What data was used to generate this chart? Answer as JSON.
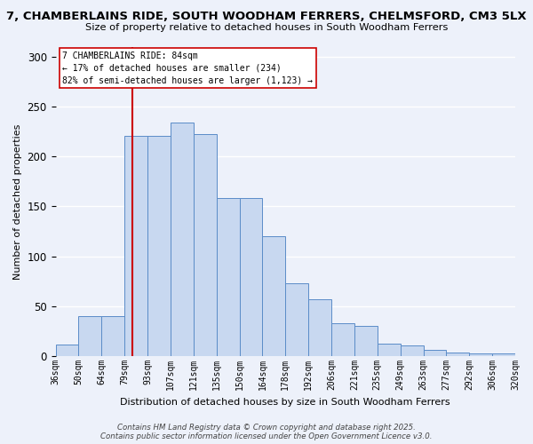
{
  "title_line1": "7, CHAMBERLAINS RIDE, SOUTH WOODHAM FERRERS, CHELMSFORD, CM3 5LX",
  "title_line2": "Size of property relative to detached houses in South Woodham Ferrers",
  "xlabel": "Distribution of detached houses by size in South Woodham Ferrers",
  "ylabel": "Number of detached properties",
  "bin_labels": [
    "36sqm",
    "50sqm",
    "64sqm",
    "79sqm",
    "93sqm",
    "107sqm",
    "121sqm",
    "135sqm",
    "150sqm",
    "164sqm",
    "178sqm",
    "192sqm",
    "206sqm",
    "221sqm",
    "235sqm",
    "249sqm",
    "263sqm",
    "277sqm",
    "292sqm",
    "306sqm",
    "320sqm"
  ],
  "bar_heights": [
    12,
    40,
    40,
    221,
    221,
    234,
    222,
    158,
    158,
    120,
    73,
    57,
    33,
    30,
    13,
    11,
    6,
    4,
    3,
    3
  ],
  "bar_color": "#c8d8f0",
  "bar_edge_color": "#5b8cc8",
  "vline_color": "#cc0000",
  "annotation_line1": "7 CHAMBERLAINS RIDE: 84sqm",
  "annotation_line2": "← 17% of detached houses are smaller (234)",
  "annotation_line3": "82% of semi-detached houses are larger (1,123) →",
  "annotation_box_facecolor": "#ffffff",
  "annotation_box_edgecolor": "#cc0000",
  "ylim": [
    0,
    310
  ],
  "yticks": [
    0,
    50,
    100,
    150,
    200,
    250,
    300
  ],
  "background_color": "#edf1fa",
  "grid_color": "#ffffff",
  "footer_text": "Contains HM Land Registry data © Crown copyright and database right 2025.\nContains public sector information licensed under the Open Government Licence v3.0."
}
